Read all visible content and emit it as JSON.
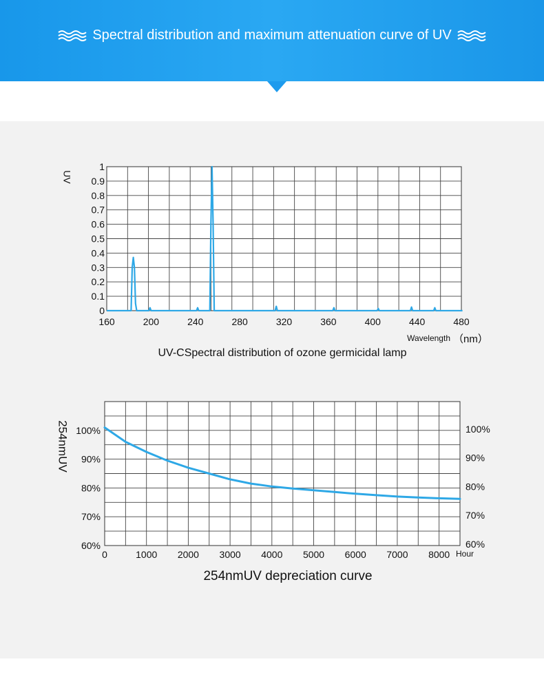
{
  "header": {
    "title": "Spectral distribution and maximum attenuation curve of UV",
    "left_icon": "wave-icon",
    "right_icon": "wave-icon",
    "color": "#1e9bed"
  },
  "chart_data": [
    {
      "type": "line",
      "title": "UV-CSpectral distribution of ozone germicidal lamp",
      "ylabel": "UV",
      "xlabel": "Wavelength",
      "xunit": "（nm）",
      "xlim": [
        160,
        480
      ],
      "ylim": [
        0,
        1
      ],
      "xticks": [
        160,
        200,
        240,
        280,
        320,
        360,
        400,
        440,
        480
      ],
      "xtick_labels": [
        "160",
        "200",
        "240",
        "280",
        "320",
        "360",
        "400",
        "440",
        "480"
      ],
      "yticks": [
        0,
        0.1,
        0.2,
        0.3,
        0.4,
        0.5,
        0.6,
        0.7,
        0.8,
        0.9,
        1
      ],
      "ytick_labels": [
        "0",
        "0.1",
        "0.2",
        "0.3",
        "0.4",
        "0.5",
        "0.6",
        "0.7",
        "0.8",
        "0.9",
        "1"
      ],
      "grid": true,
      "line_color": "#2ea8e6",
      "series": [
        {
          "x": [
            160,
            182,
            183,
            184,
            185,
            186,
            187,
            198,
            199,
            200,
            241,
            242,
            243,
            253,
            254,
            255,
            256,
            257,
            312,
            313,
            314,
            364,
            365,
            366,
            404,
            405,
            406,
            434,
            435,
            436,
            436.5,
            455,
            456,
            457,
            481
          ],
          "y": [
            0,
            0,
            0.3,
            0.37,
            0.3,
            0.05,
            0,
            0,
            0.02,
            0,
            0,
            0.02,
            0,
            0,
            0.6,
            1,
            0.6,
            0,
            0,
            0.03,
            0,
            0,
            0.02,
            0,
            0,
            0.015,
            0,
            0,
            0.025,
            0,
            0,
            0,
            0.02,
            0,
            0
          ]
        }
      ]
    },
    {
      "type": "line",
      "title": "254nmUV depreciation curve",
      "ylabel": "254nmUV",
      "xunit": "Hour",
      "xlim": [
        0,
        8500
      ],
      "ylim": [
        60,
        110
      ],
      "xticks": [
        0,
        1000,
        2000,
        3000,
        4000,
        5000,
        6000,
        7000,
        8000
      ],
      "xtick_labels": [
        "0",
        "1000",
        "2000",
        "3000",
        "4000",
        "5000",
        "6000",
        "7000",
        "8000"
      ],
      "yticks": [
        60,
        70,
        80,
        90,
        100
      ],
      "ytick_labels": [
        "60%",
        "70%",
        "80%",
        "90%",
        "100%"
      ],
      "right_ticks": [
        60,
        70,
        80,
        90,
        100
      ],
      "right_tick_labels": [
        "60%",
        "70%",
        "80%",
        "90%",
        "100%"
      ],
      "grid": true,
      "line_color": "#2ea8e6",
      "series": [
        {
          "x": [
            0,
            500,
            1000,
            1500,
            2000,
            2500,
            3000,
            3500,
            4000,
            4500,
            5000,
            5500,
            6000,
            6500,
            7000,
            7500,
            8000,
            8500
          ],
          "y": [
            101,
            96,
            92.5,
            89.5,
            87,
            85,
            83,
            81.5,
            80.5,
            79.8,
            79.2,
            78.6,
            78,
            77.5,
            77,
            76.7,
            76.4,
            76.2
          ]
        }
      ]
    }
  ]
}
